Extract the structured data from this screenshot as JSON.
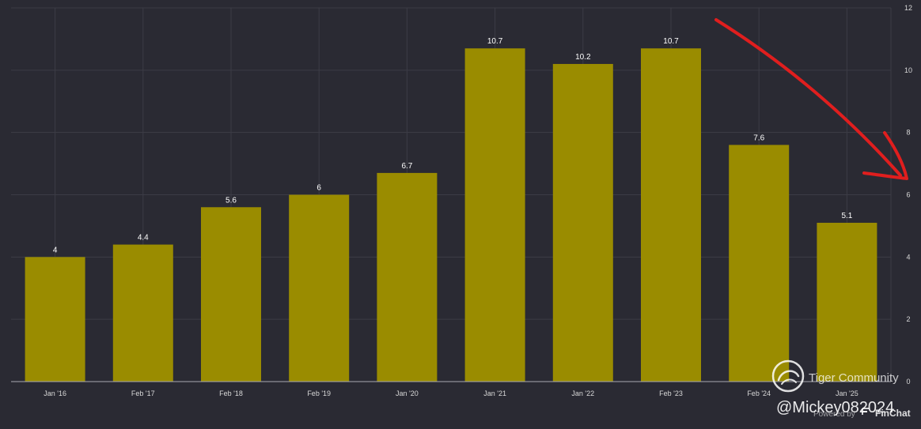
{
  "chart_data": {
    "type": "bar",
    "categories": [
      "Jan '16",
      "Feb '17",
      "Feb '18",
      "Feb '19",
      "Jan '20",
      "Jan '21",
      "Jan '22",
      "Feb '23",
      "Feb '24",
      "Jan '25"
    ],
    "values": [
      4,
      4.4,
      5.6,
      6,
      6.7,
      10.7,
      10.2,
      10.7,
      7.6,
      5.1
    ],
    "value_labels": [
      "4",
      "4.4",
      "5.6",
      "6",
      "6.7",
      "10.7",
      "10.2",
      "10.7",
      "7.6",
      "5.1"
    ],
    "y_ticks": [
      0,
      2,
      4,
      6,
      8,
      10,
      12
    ],
    "ylim": [
      0,
      12
    ],
    "grid": true,
    "bar_color": "#9a8c00",
    "background_color": "#2a2a33",
    "annotation_color": "#e01e1e"
  },
  "watermark": {
    "community": "Tiger Community",
    "user": "@Mickey082024",
    "powered": "Powered by",
    "brand": "FinChat"
  }
}
